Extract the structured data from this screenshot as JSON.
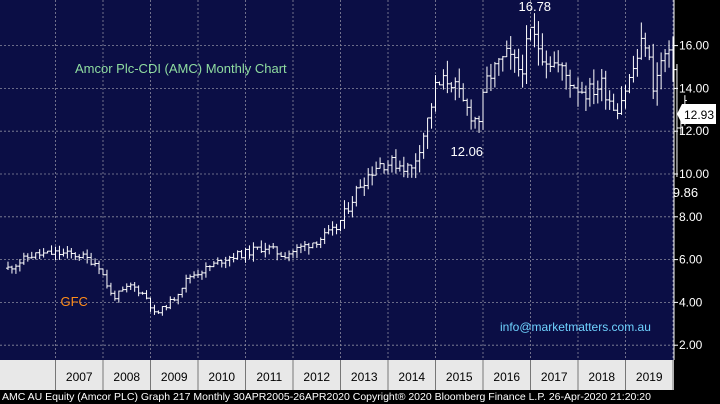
{
  "chart_data": {
    "type": "ohlc",
    "title": "Amcor Plc-CDI (AMC) Monthly Chart",
    "source_credit": "info@marketmatters.com.au",
    "footer_text": "AMC AU Equity (Amcor PLC) Graph 217  Monthly 30APR2005-26APR2020  Copyright® 2020 Bloomberg Finance L.P.   26-Apr-2020 21:20:20",
    "ylim": [
      1.6,
      18.8
    ],
    "y_ticks": [
      "2.00",
      "4.00",
      "6.00",
      "8.00",
      "10.00",
      "12.00",
      "14.00",
      "16.00"
    ],
    "x_years": [
      "2007",
      "2008",
      "2009",
      "2010",
      "2011",
      "2012",
      "2013",
      "2014",
      "2015",
      "2016",
      "2017",
      "2018",
      "2019"
    ],
    "last_price": "12.93",
    "annotations": [
      {
        "label": "GFC",
        "x": 2008.2,
        "y": 4.2,
        "color": "#ff8c1a"
      },
      {
        "label": "16.78",
        "x": 2017.0,
        "y": 16.78,
        "color": "#ffffff"
      },
      {
        "label": "12.06",
        "x": 2015.4,
        "y": 12.06,
        "color": "#ffffff"
      },
      {
        "label": "9.86",
        "x": 2020.1,
        "y": 9.86,
        "color": "#ffffff"
      }
    ],
    "series": [
      {
        "values": [
          [
            2006.0,
            5.6
          ],
          [
            2006.5,
            6.2
          ],
          [
            2007.0,
            6.3
          ],
          [
            2007.5,
            6.2
          ],
          [
            2007.9,
            5.8
          ],
          [
            2008.2,
            4.2
          ],
          [
            2008.6,
            4.8
          ],
          [
            2008.9,
            4.3
          ],
          [
            2009.1,
            3.4
          ],
          [
            2009.5,
            4.2
          ],
          [
            2009.8,
            5.2
          ],
          [
            2010.2,
            5.6
          ],
          [
            2010.6,
            6.1
          ],
          [
            2011.0,
            6.3
          ],
          [
            2011.4,
            6.6
          ],
          [
            2011.8,
            6.2
          ],
          [
            2012.2,
            6.6
          ],
          [
            2012.6,
            7.0
          ],
          [
            2012.9,
            7.4
          ],
          [
            2013.1,
            8.2
          ],
          [
            2013.4,
            9.5
          ],
          [
            2013.8,
            10.5
          ],
          [
            2014.2,
            10.5
          ],
          [
            2014.5,
            10.2
          ],
          [
            2014.8,
            12.2
          ],
          [
            2015.0,
            14.0
          ],
          [
            2015.3,
            14.5
          ],
          [
            2015.6,
            13.2
          ],
          [
            2015.9,
            12.4
          ],
          [
            2016.1,
            14.5
          ],
          [
            2016.5,
            15.5
          ],
          [
            2016.8,
            14.8
          ],
          [
            2017.0,
            16.6
          ],
          [
            2017.3,
            15.5
          ],
          [
            2017.6,
            15.0
          ],
          [
            2017.9,
            14.2
          ],
          [
            2018.2,
            13.8
          ],
          [
            2018.5,
            14.2
          ],
          [
            2018.8,
            13.0
          ],
          [
            2019.1,
            14.5
          ],
          [
            2019.4,
            16.4
          ],
          [
            2019.6,
            14.0
          ],
          [
            2019.8,
            15.6
          ],
          [
            2020.0,
            15.2
          ],
          [
            2020.1,
            11.5
          ],
          [
            2020.25,
            13.3
          ]
        ]
      }
    ],
    "colors": {
      "plot_bg": "#0b0e45",
      "grid": "#8a8a9e",
      "bars": "#ffffff",
      "title": "#8fdca0",
      "credit": "#6fd3ff",
      "gfc": "#ff8c1a",
      "axis_text": "#ffffff",
      "year_band": "#e8e8e8",
      "year_text": "#000000",
      "footer_text": "#ffffff"
    }
  }
}
